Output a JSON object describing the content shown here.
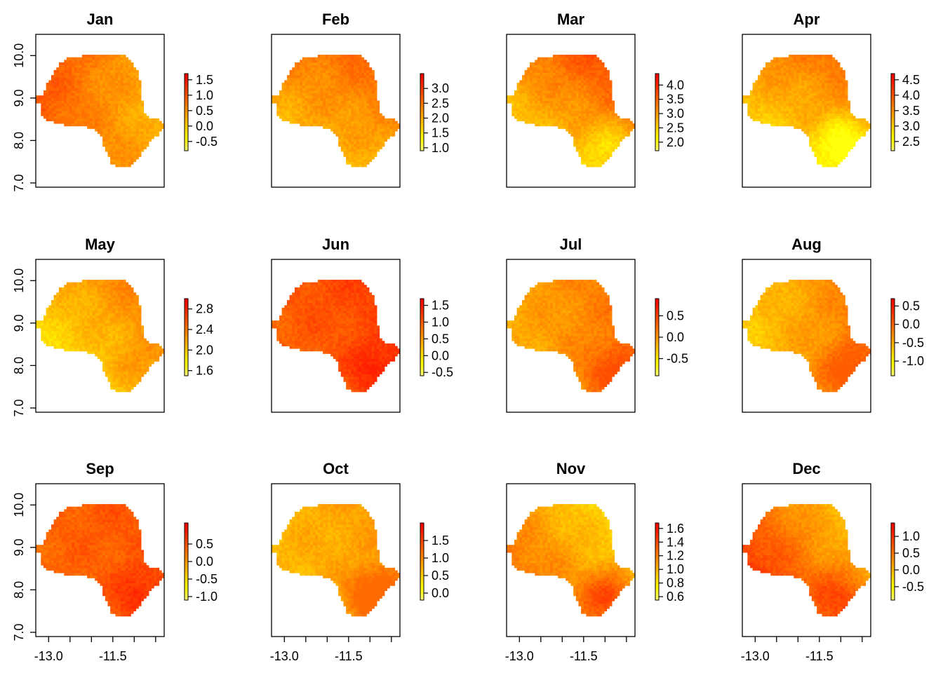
{
  "chart_data": {
    "type": "heatmap",
    "layout": {
      "rows": 3,
      "cols": 4
    },
    "x_ticks": [
      {
        "value": -13.0,
        "label": "-13.0"
      },
      {
        "value": -12.5,
        "label": ""
      },
      {
        "value": -12.0,
        "label": ""
      },
      {
        "value": -11.5,
        "label": "-11.5"
      },
      {
        "value": -11.0,
        "label": ""
      },
      {
        "value": -10.5,
        "label": ""
      }
    ],
    "y_ticks": [
      {
        "value": 7.0,
        "label": "7.0"
      },
      {
        "value": 8.0,
        "label": "8.0"
      },
      {
        "value": 9.0,
        "label": "9.0"
      },
      {
        "value": 10.0,
        "label": "10.0"
      }
    ],
    "xlim": [
      -13.3,
      -10.3
    ],
    "ylim": [
      6.9,
      10.5
    ],
    "colorscale": [
      "#ffff80",
      "#ffff00",
      "#ffcc00",
      "#ff9900",
      "#ff6600",
      "#ff3300",
      "#ff0000"
    ],
    "panels": [
      {
        "title": "Jan",
        "range": [
          -0.8,
          1.7
        ],
        "legend_ticks": [
          1.5,
          1.0,
          0.5,
          0.0,
          -0.5
        ],
        "legend_labels": [
          "1.5",
          "1.0",
          "0.5",
          "0.0",
          "-0.5"
        ],
        "lo": 0.25,
        "hi": 0.85,
        "west_bias": 0.35,
        "north_bias": 0.05,
        "se_bias": 0.05
      },
      {
        "title": "Feb",
        "range": [
          0.9,
          3.5
        ],
        "legend_ticks": [
          3.0,
          2.5,
          2.0,
          1.5,
          1.0
        ],
        "legend_labels": [
          "3.0",
          "2.5",
          "2.0",
          "1.5",
          "1.0"
        ],
        "lo": 0.25,
        "hi": 0.75,
        "west_bias": -0.15,
        "north_bias": 0.35,
        "se_bias": 0.0
      },
      {
        "title": "Mar",
        "range": [
          1.7,
          4.4
        ],
        "legend_ticks": [
          4.0,
          3.5,
          3.0,
          2.5,
          2.0
        ],
        "legend_labels": [
          "4.0",
          "3.5",
          "3.0",
          "2.5",
          "2.0"
        ],
        "lo": 0.2,
        "hi": 0.8,
        "west_bias": -0.25,
        "north_bias": 0.5,
        "se_bias": -0.2
      },
      {
        "title": "Apr",
        "range": [
          2.2,
          4.7
        ],
        "legend_ticks": [
          4.5,
          4.0,
          3.5,
          3.0,
          2.5
        ],
        "legend_labels": [
          "4.5",
          "4.0",
          "3.5",
          "3.0",
          "2.5"
        ],
        "lo": 0.15,
        "hi": 0.7,
        "west_bias": -0.15,
        "north_bias": 0.45,
        "se_bias": -0.35
      },
      {
        "title": "May",
        "range": [
          1.5,
          3.0
        ],
        "legend_ticks": [
          2.8,
          2.4,
          2.0,
          1.6
        ],
        "legend_labels": [
          "2.8",
          "2.4",
          "2.0",
          "1.6"
        ],
        "lo": 0.15,
        "hi": 0.65,
        "west_bias": -0.25,
        "north_bias": 0.3,
        "se_bias": 0.1
      },
      {
        "title": "Jun",
        "range": [
          -0.6,
          1.7
        ],
        "legend_ticks": [
          1.5,
          1.0,
          0.5,
          0.0,
          -0.5
        ],
        "legend_labels": [
          "1.5",
          "1.0",
          "0.5",
          "0.0",
          "-0.5"
        ],
        "lo": 0.55,
        "hi": 0.9,
        "west_bias": -0.1,
        "north_bias": 0.1,
        "se_bias": 0.2
      },
      {
        "title": "Jul",
        "range": [
          -0.9,
          0.9
        ],
        "legend_ticks": [
          0.5,
          0.0,
          -0.5
        ],
        "legend_labels": [
          "0.5",
          "0.0",
          "-0.5"
        ],
        "lo": 0.3,
        "hi": 0.75,
        "west_bias": -0.2,
        "north_bias": 0.05,
        "se_bias": 0.2
      },
      {
        "title": "Aug",
        "range": [
          -1.4,
          0.7
        ],
        "legend_ticks": [
          0.5,
          0.0,
          -0.5,
          -1.0
        ],
        "legend_labels": [
          "0.5",
          "0.0",
          "-0.5",
          "-1.0"
        ],
        "lo": 0.25,
        "hi": 0.7,
        "west_bias": -0.3,
        "north_bias": 0.0,
        "se_bias": 0.2
      },
      {
        "title": "Sep",
        "range": [
          -1.1,
          1.1
        ],
        "legend_ticks": [
          0.5,
          0.0,
          -0.5,
          -1.0
        ],
        "legend_labels": [
          "0.5",
          "0.0",
          "-0.5",
          "-1.0"
        ],
        "lo": 0.5,
        "hi": 0.88,
        "west_bias": -0.05,
        "north_bias": 0.05,
        "se_bias": 0.2
      },
      {
        "title": "Oct",
        "range": [
          -0.2,
          2.0
        ],
        "legend_ticks": [
          1.5,
          1.0,
          0.5,
          0.0
        ],
        "legend_labels": [
          "1.5",
          "1.0",
          "0.5",
          "0.0"
        ],
        "lo": 0.25,
        "hi": 0.65,
        "west_bias": -0.1,
        "north_bias": 0.0,
        "se_bias": 0.35
      },
      {
        "title": "Nov",
        "range": [
          0.55,
          1.68
        ],
        "legend_ticks": [
          1.6,
          1.4,
          1.2,
          1.0,
          0.8,
          0.6
        ],
        "legend_labels": [
          "1.6",
          "1.4",
          "1.2",
          "1.0",
          "0.8",
          "0.6"
        ],
        "lo": 0.15,
        "hi": 0.8,
        "west_bias": 0.3,
        "north_bias": -0.3,
        "se_bias": 0.35
      },
      {
        "title": "Dec",
        "range": [
          -0.9,
          1.4
        ],
        "legend_ticks": [
          1.0,
          0.5,
          0.0,
          -0.5
        ],
        "legend_labels": [
          "1.0",
          "0.5",
          "0.0",
          "-0.5"
        ],
        "lo": 0.25,
        "hi": 0.95,
        "west_bias": 0.45,
        "north_bias": -0.35,
        "se_bias": 0.25
      }
    ]
  }
}
